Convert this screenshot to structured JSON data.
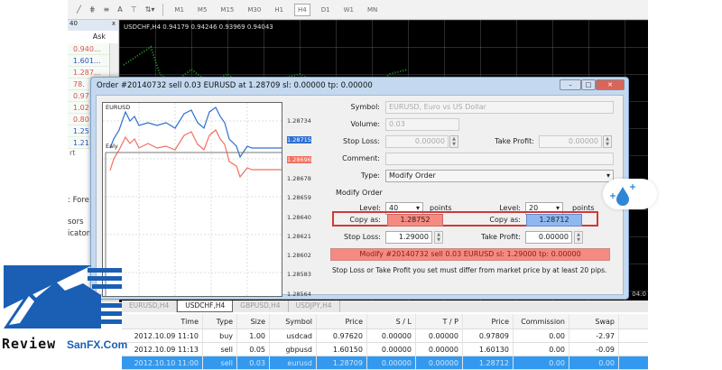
{
  "toolbar": {
    "timeframes": [
      "M1",
      "M5",
      "M15",
      "M30",
      "H1",
      "H4",
      "D1",
      "W1",
      "MN"
    ],
    "active": "H4",
    "tools": [
      "line-icon",
      "fibonacci-icon",
      "channel-icon",
      "text-icon",
      "label-icon",
      "arrows-icon"
    ]
  },
  "market_watch": {
    "title_fragment": "40",
    "close": "x",
    "ask_header": "Ask",
    "rows": [
      {
        "ask": "0.940...",
        "color": "#d9534f"
      },
      {
        "ask": "1.601...",
        "color": "#2a52be"
      },
      {
        "ask": "1.287...",
        "color": "#d9534f"
      },
      {
        "ask": "78.",
        "color": "#d9534f"
      },
      {
        "ask": "0.97",
        "color": "#d9534f"
      },
      {
        "ask": "1.02",
        "color": "#d9534f"
      },
      {
        "ask": "0.80",
        "color": "#d9534f"
      },
      {
        "ask": "1.25",
        "color": "#2a52be"
      },
      {
        "ask": "1.21",
        "color": "#2a52be"
      }
    ],
    "tab_fragment": "rt"
  },
  "navigator": {
    "items": [
      ": Fore",
      "sors",
      "icators"
    ]
  },
  "chart": {
    "header": "USDCHF,H4  0.94179 0.94246 0.93969 0.94043",
    "time_fragment": "04:0"
  },
  "dialog": {
    "title": "Order #20140732 sell 0.03 EURUSD at 1.28709 sl: 0.00000 tp: 0.00000",
    "mini_chart": {
      "symbol": "EURUSD",
      "label": "Ealy",
      "axis": [
        "1.28734",
        "1.28715",
        "1.28696",
        "1.28678",
        "1.28659",
        "1.28640",
        "1.28621",
        "1.28602",
        "1.28583",
        "1.28564"
      ],
      "bid_color": "#2e6fd1",
      "ask_color": "#f07060"
    },
    "symbol_label": "Symbol:",
    "symbol_value": "EURUSD, Euro vs US Dollar",
    "volume_label": "Volume:",
    "volume_value": "0.03",
    "stop_loss_label": "Stop Loss:",
    "stop_loss_value": "0.00000",
    "take_profit_label": "Take Profit:",
    "take_profit_value": "0.00000",
    "comment_label": "Comment:",
    "comment_value": "",
    "type_label": "Type:",
    "type_value": "Modify Order",
    "modify_section": "Modify Order",
    "level_label": "Level:",
    "level_left": "40",
    "level_right": "20",
    "points": "points",
    "copy_as_label": "Copy as:",
    "copy_left": "1.28752",
    "copy_right": "1.28712",
    "sl_label": "Stop Loss:",
    "sl_value": "1.29000",
    "tp_label": "Take Profit:",
    "tp_value": "0.00000",
    "modify_button": "Modify #20140732 sell 0.03 EURUSD sl: 1.29000 tp: 0.00000",
    "note": "Stop Loss or Take Profit you set must differ from market price by at least 20 pips."
  },
  "chart_tabs": [
    "EURUSD,H4",
    "USDCHF,H4",
    "GBPUSD,H4",
    "USDJPY,H4"
  ],
  "active_chart_tab": "USDCHF,H4",
  "trade_table": {
    "headers": [
      "Time",
      "Type",
      "Size",
      "Symbol",
      "Price",
      "S / L",
      "T / P",
      "Price",
      "Commission",
      "Swap"
    ],
    "rows": [
      [
        "2012.10.09 11:10",
        "buy",
        "1.00",
        "usdcad",
        "0.97620",
        "0.00000",
        "0.00000",
        "0.97809",
        "0.00",
        "-2.97"
      ],
      [
        "2012.10.09 11:13",
        "sell",
        "0.05",
        "gbpusd",
        "1.60150",
        "0.00000",
        "0.00000",
        "1.60130",
        "0.00",
        "-0.09"
      ],
      [
        "2012.10.10 11:00",
        "sell",
        "0.03",
        "eurusd",
        "1.28709",
        "0.00000",
        "0.00000",
        "1.28712",
        "0.00",
        "0.00"
      ]
    ]
  },
  "watermark": {
    "text_left": "Review",
    "text_right": "SanFX.Com",
    "color": "#1a5fb4"
  }
}
